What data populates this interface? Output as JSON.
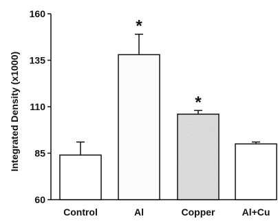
{
  "chart_data": {
    "type": "bar",
    "title": "",
    "xlabel": "",
    "ylabel": "Integrated Density (x1000)",
    "ylim": [
      60,
      160
    ],
    "yticks": [
      60,
      85,
      110,
      135,
      160
    ],
    "grid": false,
    "legend": "none",
    "categories": [
      "Control",
      "Al",
      "Copper",
      "Al+Cu"
    ],
    "values": [
      84,
      138,
      106,
      90
    ],
    "errors": [
      7,
      11,
      2,
      1
    ],
    "significance": [
      "",
      "*",
      "*",
      ""
    ],
    "bar_fills": [
      "#ffffff",
      "#fbfbfb",
      "#e2e2e2",
      "#ffffff"
    ],
    "colors": {
      "bar_stroke": "#111111",
      "axis": "#111111"
    }
  }
}
